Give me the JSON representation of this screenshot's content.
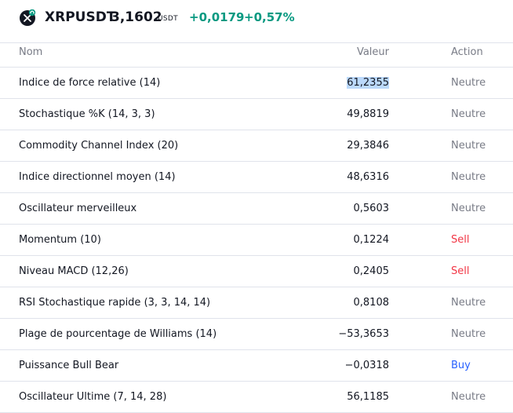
{
  "header": {
    "symbol": "XRPUSDT",
    "price": "3,1602",
    "currency": "USDT",
    "change": "+0,0179",
    "change_pct": "+0,57%",
    "logo_icon": "xrp-logo-icon",
    "positive_color": "#089981"
  },
  "table": {
    "columns": [
      "Nom",
      "Valeur",
      "Action"
    ],
    "rows": [
      {
        "name": "Indice de force relative (14)",
        "value": "61,2355",
        "action": "Neutre",
        "color": "#787b86"
      },
      {
        "name": "Stochastique %K (14, 3, 3)",
        "value": "49,8819",
        "action": "Neutre",
        "color": "#787b86"
      },
      {
        "name": "Commodity Channel Index (20)",
        "value": "29,3846",
        "action": "Neutre",
        "color": "#787b86"
      },
      {
        "name": "Indice directionnel moyen (14)",
        "value": "48,6316",
        "action": "Neutre",
        "color": "#787b86"
      },
      {
        "name": "Oscillateur merveilleux",
        "value": "0,5603",
        "action": "Neutre",
        "color": "#787b86"
      },
      {
        "name": "Momentum (10)",
        "value": "0,1224",
        "action": "Sell",
        "color": "#f23645"
      },
      {
        "name": "Niveau MACD (12,26)",
        "value": "0,2405",
        "action": "Sell",
        "color": "#f23645"
      },
      {
        "name": "RSI Stochastique rapide (3, 3, 14, 14)",
        "value": "0,8108",
        "action": "Neutre",
        "color": "#787b86"
      },
      {
        "name": "Plage de pourcentage de Williams (14)",
        "value": "−53,3653",
        "action": "Neutre",
        "color": "#787b86"
      },
      {
        "name": "Puissance Bull Bear",
        "value": "−0,0318",
        "action": "Buy",
        "color": "#2962ff"
      },
      {
        "name": "Oscillateur Ultime (7, 14, 28)",
        "value": "56,1185",
        "action": "Neutre",
        "color": "#787b86"
      }
    ]
  }
}
